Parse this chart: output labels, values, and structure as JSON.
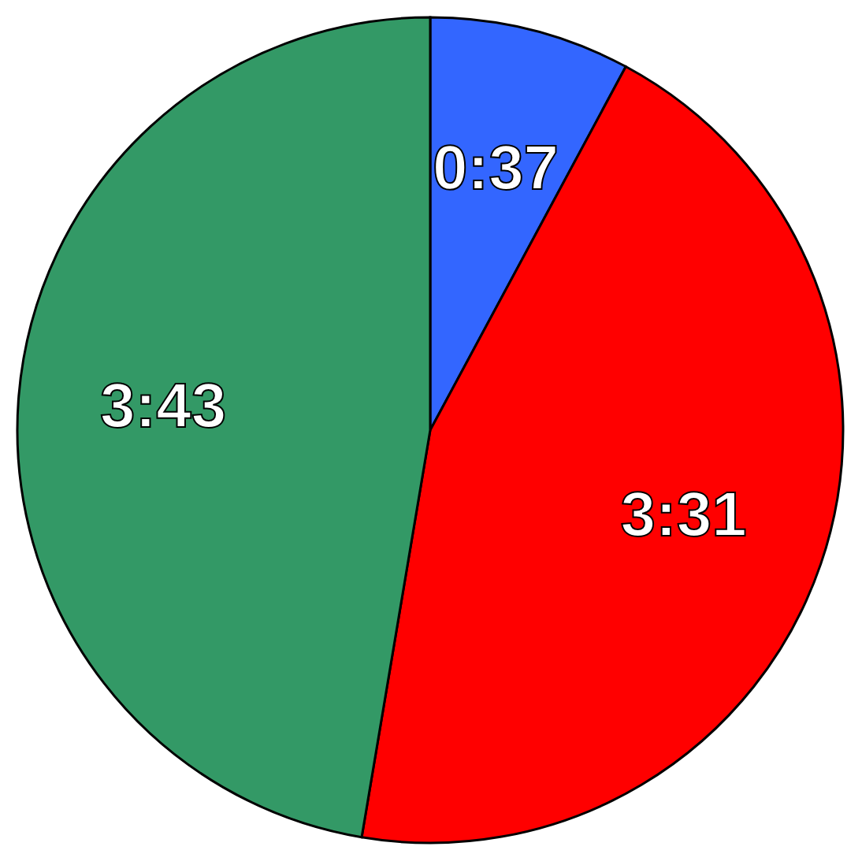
{
  "chart_data": {
    "type": "pie",
    "categories": [
      null,
      null,
      null
    ],
    "values": [
      37,
      211,
      223
    ],
    "value_labels": [
      "0:37",
      "3:31",
      "3:43"
    ],
    "colors": [
      "#3366ff",
      "#ff0000",
      "#339966"
    ]
  }
}
